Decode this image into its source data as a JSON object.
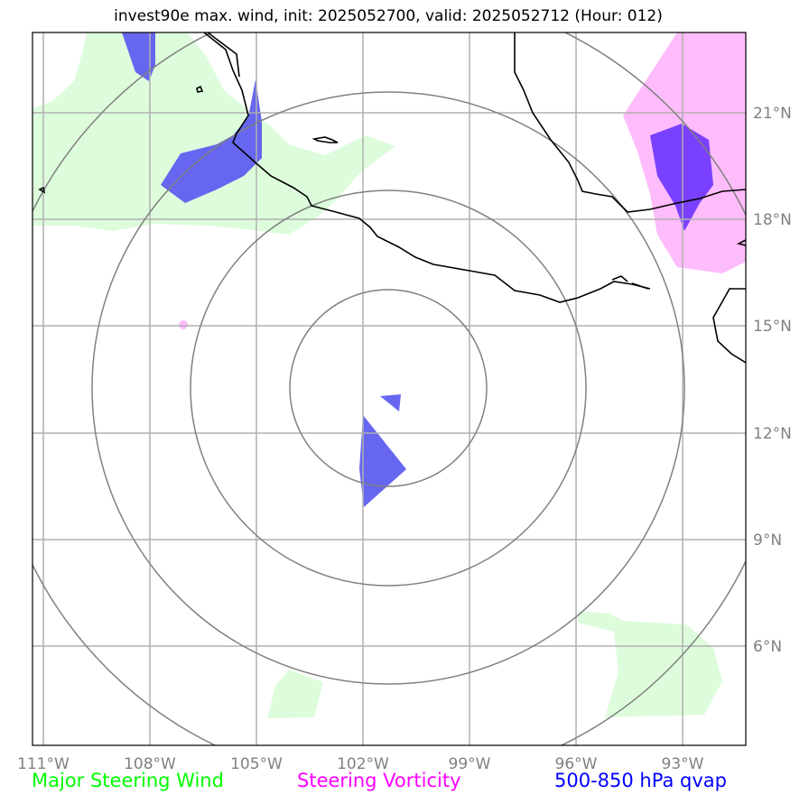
{
  "title": "invest90e max. wind, init: 2025052700, valid: 2025052712 (Hour: 012)",
  "map": {
    "lon_labels": [
      "111°W",
      "108°W",
      "105°W",
      "102°W",
      "99°W",
      "96°W",
      "93°W"
    ],
    "lat_labels": [
      "21°N",
      "18°N",
      "15°N",
      "12°N",
      "9°N",
      "6°N"
    ],
    "colors": {
      "steering_wind": "#ddfcdc",
      "vorticity": "#ffbcfc",
      "qvap": "#6666f0",
      "qvap_overlap": "#7a40ff",
      "range_rings": "#808080",
      "gridlines": "#b0b0b0",
      "coastline": "#000000"
    }
  },
  "legend": {
    "steering_wind": "Major Steering Wind",
    "vorticity": "Steering Vorticity",
    "qvap": "500-850 hPa qvap"
  }
}
